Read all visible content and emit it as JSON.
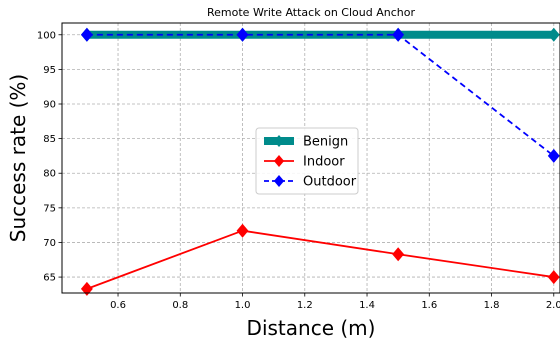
{
  "chart_data": {
    "type": "line",
    "title": "Remote Write Attack on Cloud Anchor",
    "xlabel": "Distance (m)",
    "ylabel": "Success rate (%)",
    "xlim": [
      0.42,
      2.02
    ],
    "ylim": [
      62.7,
      101.7
    ],
    "x_ticks": [
      "0.6",
      "0.8",
      "1.0",
      "1.2",
      "1.4",
      "1.6",
      "1.8",
      "2.0"
    ],
    "y_ticks": [
      "65",
      "70",
      "75",
      "80",
      "85",
      "90",
      "95",
      "100"
    ],
    "grid": true,
    "legend_position": "center",
    "series": [
      {
        "name": "Benign",
        "color": "#008b8b",
        "style": "solid-thick",
        "marker": "diamond",
        "x": [
          0.5,
          1.0,
          1.5,
          2.0
        ],
        "y": [
          100,
          100,
          100,
          100
        ]
      },
      {
        "name": "Indoor",
        "color": "#ff0000",
        "style": "solid",
        "marker": "diamond",
        "x": [
          0.5,
          1.0,
          1.5,
          2.0
        ],
        "y": [
          63.3,
          71.7,
          68.3,
          65.0
        ]
      },
      {
        "name": "Outdoor",
        "color": "#0000ff",
        "style": "dashed",
        "marker": "diamond",
        "x": [
          0.5,
          1.0,
          1.5,
          2.0
        ],
        "y": [
          100,
          100,
          100,
          82.5
        ]
      }
    ]
  }
}
